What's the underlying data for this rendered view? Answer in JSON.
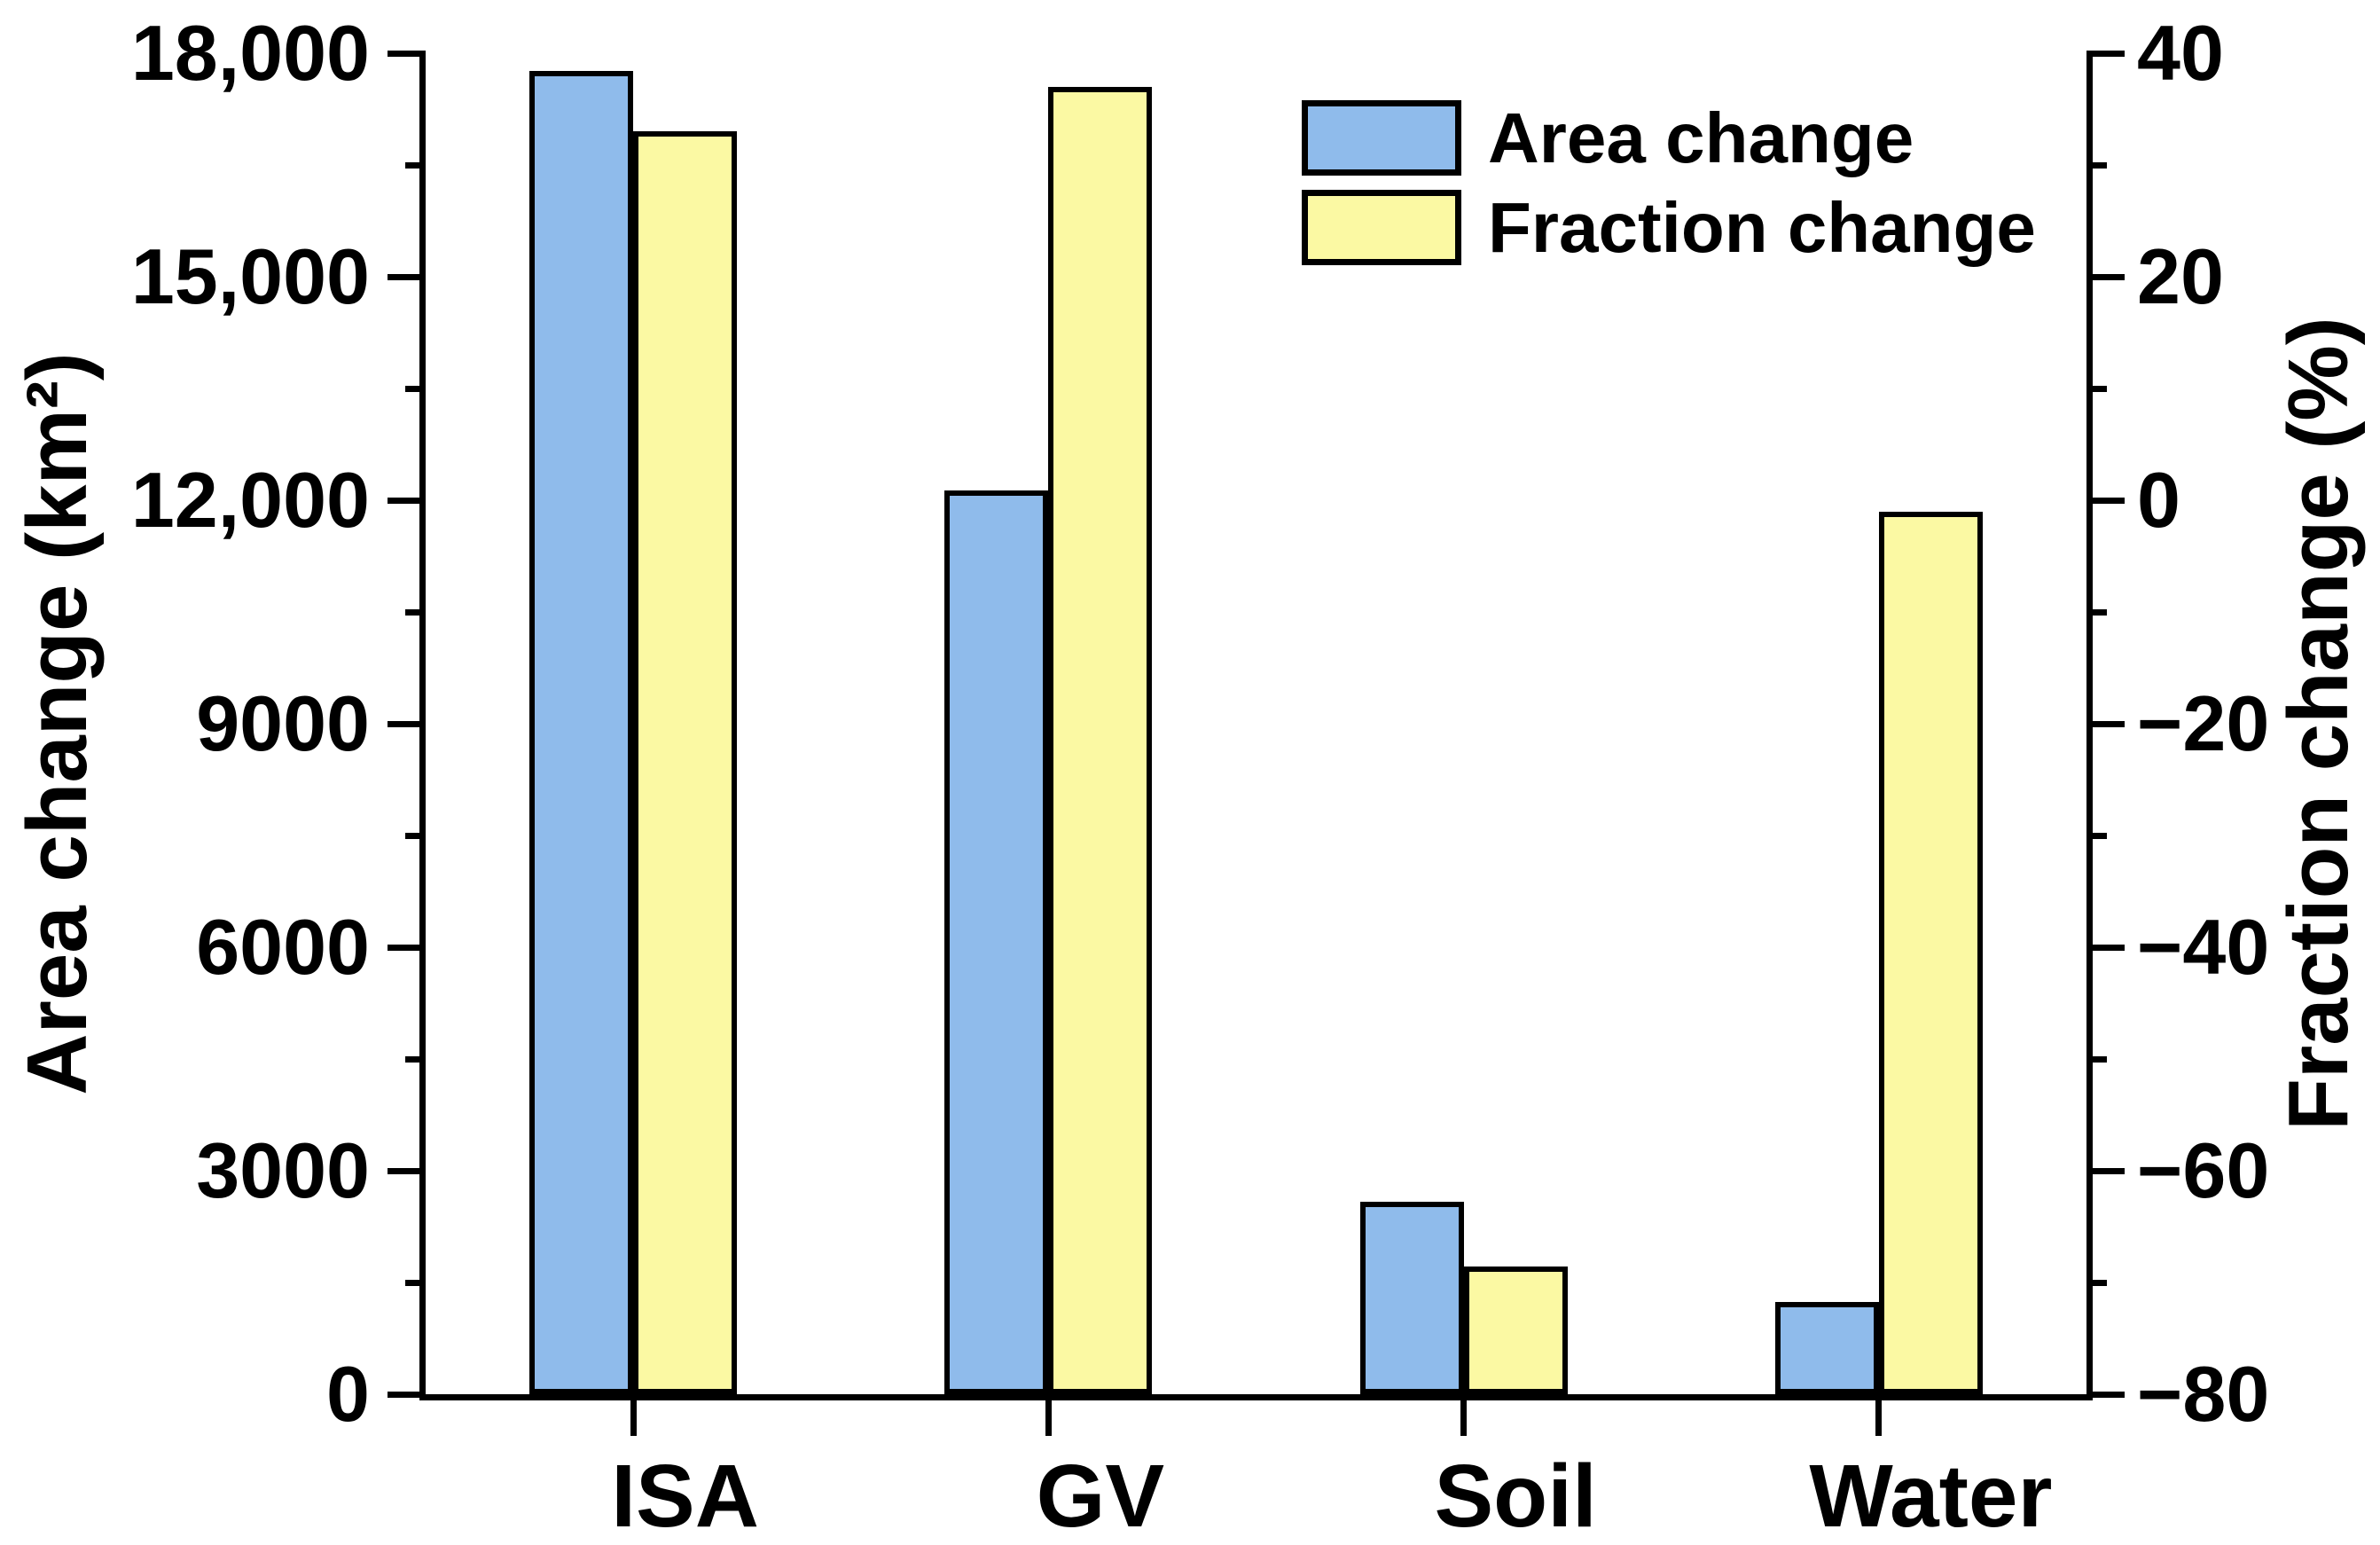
{
  "figure": {
    "background": "#ffffff",
    "axis_color": "#000000"
  },
  "left_axis": {
    "title": "Area change (km²)",
    "tick_labels": [
      "18,000",
      "15,000",
      "12,000",
      "9000",
      "6000",
      "3000",
      "0"
    ],
    "tick_values": [
      18000,
      15000,
      12000,
      9000,
      6000,
      3000,
      0
    ],
    "min": 0,
    "max": 18000,
    "minor_step": 1500
  },
  "right_axis": {
    "title": "Fraction change (%)",
    "tick_labels": [
      "40",
      "20",
      "0",
      "−20",
      "−40",
      "−60",
      "−80"
    ],
    "tick_values": [
      40,
      20,
      0,
      -20,
      -40,
      -60,
      -80
    ],
    "min": -80,
    "max": 40,
    "minor_step": 10
  },
  "legend": {
    "items": [
      {
        "label": "Area change",
        "color": "#8FBBEB"
      },
      {
        "label": "Fraction change",
        "color": "#FBF9A3"
      }
    ]
  },
  "chart_data": {
    "type": "bar",
    "categories": [
      "ISA",
      "GV",
      "Soil",
      "Water"
    ],
    "series": [
      {
        "name": "Area change",
        "axis": "left",
        "unit": "km²",
        "color": "#8FBBEB",
        "values": [
          17760,
          12130,
          2580,
          1240
        ]
      },
      {
        "name": "Fraction change",
        "axis": "right",
        "unit": "%",
        "color": "#FBF9A3",
        "values": [
          33,
          37,
          -68.6,
          -1
        ]
      }
    ],
    "title": "",
    "xlabel": "",
    "ylabel_left": "Area change (km²)",
    "ylabel_right": "Fraction change (%)",
    "ylim_left": [
      0,
      18000
    ],
    "ylim_right": [
      -80,
      40
    ],
    "right_series_base": -80,
    "grid": false,
    "legend_position": "top-center"
  }
}
